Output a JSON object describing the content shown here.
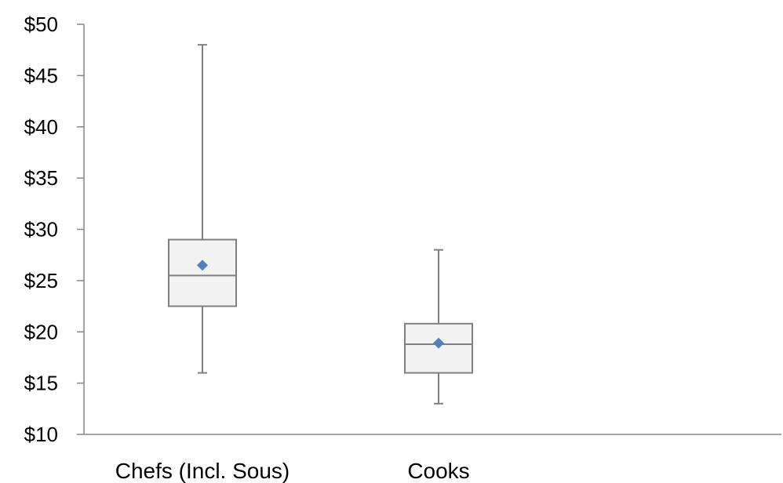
{
  "chart_data": {
    "type": "boxplot",
    "title": "",
    "xlabel": "",
    "ylabel": "",
    "ylim": [
      10,
      50
    ],
    "yticks": [
      10,
      15,
      20,
      25,
      30,
      35,
      40,
      45,
      50
    ],
    "ytick_labels": [
      "$10",
      "$15",
      "$20",
      "$25",
      "$30",
      "$35",
      "$40",
      "$45",
      "$50"
    ],
    "grid": false,
    "categories": [
      "Chefs (Incl. Sous)",
      "Cooks"
    ],
    "boxes": [
      {
        "category": "Chefs (Incl. Sous)",
        "min": 16,
        "q1": 22.5,
        "median": 25.5,
        "q3": 29,
        "max": 48,
        "mean": 26.5
      },
      {
        "category": "Cooks",
        "min": 13,
        "q1": 16,
        "median": 18.8,
        "q3": 20.8,
        "max": 28,
        "mean": 18.9
      }
    ],
    "colors": {
      "box_fill": "#f2f2f2",
      "box_stroke": "#7f7f7f",
      "whisker": "#7f7f7f",
      "mean_marker": "#4f81bd",
      "axis": "#868686"
    }
  }
}
